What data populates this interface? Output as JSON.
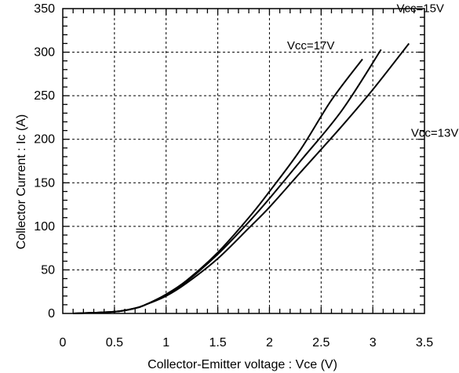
{
  "chart_data": {
    "type": "line",
    "title": "",
    "xlabel": "Collector-Emitter voltage : Vce  (V)",
    "ylabel": "Collector Current : Ic (A)",
    "xlim": [
      0,
      3.5
    ],
    "ylim": [
      0,
      350
    ],
    "x_ticks": [
      0,
      0.5,
      1,
      1.5,
      2,
      2.5,
      3,
      3.5
    ],
    "x_tick_labels": [
      "0",
      "0.5",
      "1",
      "1.5",
      "2",
      "2.5",
      "3",
      "3.5"
    ],
    "y_ticks": [
      0,
      50,
      100,
      150,
      200,
      250,
      300,
      350
    ],
    "y_tick_labels": [
      "0",
      "50",
      "100",
      "150",
      "200",
      "250",
      "300",
      "350"
    ],
    "grid": true,
    "line_color": "#000000",
    "series": [
      {
        "name": "Vcc=17V",
        "x": [
          0.1,
          0.5,
          0.7,
          0.8,
          1.0,
          1.2,
          1.5,
          1.8,
          2.0,
          2.3,
          2.6,
          2.9
        ],
        "y": [
          0,
          2,
          6,
          10,
          22,
          38,
          70,
          110,
          140,
          188,
          245,
          292
        ]
      },
      {
        "name": "Vcc=15V",
        "x": [
          0.1,
          0.5,
          0.7,
          0.8,
          1.0,
          1.2,
          1.5,
          1.8,
          2.0,
          2.3,
          2.7,
          3.08
        ],
        "y": [
          0,
          2,
          6,
          10,
          21,
          37,
          68,
          105,
          132,
          175,
          233,
          303
        ]
      },
      {
        "name": "Vcc=13V",
        "x": [
          0.1,
          0.5,
          0.7,
          0.8,
          1.0,
          1.2,
          1.5,
          1.8,
          2.0,
          2.3,
          2.7,
          3.0,
          3.35
        ],
        "y": [
          0,
          2,
          6,
          10,
          20,
          35,
          63,
          98,
          122,
          162,
          215,
          257,
          310
        ]
      }
    ],
    "annotations": [
      {
        "text": "Vcc=15V",
        "x": 3.46,
        "y": 346
      },
      {
        "text": "Vcc=17V",
        "x": 2.4,
        "y": 303
      },
      {
        "text": "Vcc=13V",
        "x": 3.6,
        "y": 203
      }
    ]
  }
}
